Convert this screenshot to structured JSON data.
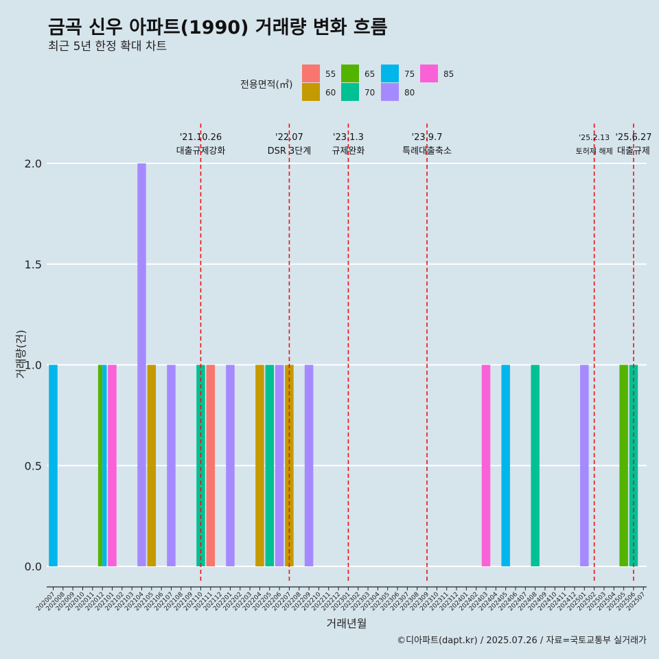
{
  "title": "금곡 신우 아파트(1990) 거래량 변화 흐름",
  "subtitle": "최근 5년 한정 확대 차트",
  "caption": "©디아파트(dapt.kr) / 2025.07.26 / 자료=국토교통부 실거래가",
  "chart_data": {
    "type": "bar",
    "xlabel": "거래년월",
    "ylabel": "거래량(건)",
    "ylim": [
      0,
      2
    ],
    "yticks": [
      "0.0",
      "0.5",
      "1.0",
      "1.5",
      "2.0"
    ],
    "grid": true,
    "legend": {
      "title": "전용면적(㎡)",
      "position": "top",
      "entries": [
        {
          "label": "55",
          "color": "#F8766D"
        },
        {
          "label": "60",
          "color": "#C49A00"
        },
        {
          "label": "65",
          "color": "#53B400"
        },
        {
          "label": "70",
          "color": "#00C094"
        },
        {
          "label": "75",
          "color": "#00B6EB"
        },
        {
          "label": "80",
          "color": "#A58AFF"
        },
        {
          "label": "85",
          "color": "#FB61D7"
        }
      ]
    },
    "categories": [
      "202007",
      "202008",
      "202009",
      "202010",
      "202011",
      "202012",
      "202101",
      "202102",
      "202103",
      "202104",
      "202105",
      "202106",
      "202107",
      "202108",
      "202109",
      "202110",
      "202111",
      "202112",
      "202201",
      "202202",
      "202203",
      "202204",
      "202205",
      "202206",
      "202207",
      "202208",
      "202209",
      "202210",
      "202211",
      "202212",
      "202301",
      "202302",
      "202303",
      "202304",
      "202305",
      "202306",
      "202307",
      "202308",
      "202309",
      "202310",
      "202311",
      "202312",
      "202401",
      "202402",
      "202403",
      "202404",
      "202405",
      "202406",
      "202407",
      "202408",
      "202409",
      "202410",
      "202411",
      "202412",
      "202501",
      "202502",
      "202503",
      "202504",
      "202505",
      "202506",
      "202507"
    ],
    "bars": [
      {
        "month": "202007",
        "area": "75",
        "value": 1
      },
      {
        "month": "202012",
        "area": "65",
        "value": 1
      },
      {
        "month": "202012",
        "area": "75",
        "value": 1
      },
      {
        "month": "202101",
        "area": "85",
        "value": 1
      },
      {
        "month": "202104",
        "area": "80",
        "value": 2
      },
      {
        "month": "202105",
        "area": "60",
        "value": 1
      },
      {
        "month": "202107",
        "area": "80",
        "value": 1
      },
      {
        "month": "202110",
        "area": "70",
        "value": 1
      },
      {
        "month": "202111",
        "area": "55",
        "value": 1
      },
      {
        "month": "202201",
        "area": "80",
        "value": 1
      },
      {
        "month": "202204",
        "area": "60",
        "value": 1
      },
      {
        "month": "202205",
        "area": "70",
        "value": 1
      },
      {
        "month": "202206",
        "area": "80",
        "value": 1
      },
      {
        "month": "202207",
        "area": "60",
        "value": 1
      },
      {
        "month": "202209",
        "area": "80",
        "value": 1
      },
      {
        "month": "202403",
        "area": "85",
        "value": 1
      },
      {
        "month": "202405",
        "area": "75",
        "value": 1
      },
      {
        "month": "202408",
        "area": "70",
        "value": 1
      },
      {
        "month": "202501",
        "area": "80",
        "value": 1
      },
      {
        "month": "202505",
        "area": "65",
        "value": 1
      },
      {
        "month": "202506",
        "area": "70",
        "value": 1
      }
    ],
    "annotations": [
      {
        "date": "'21.10.26",
        "label": "대출규제강화",
        "position_month": "202110"
      },
      {
        "date": "'22.07",
        "label": "DSR 3단계",
        "position_month": "202207"
      },
      {
        "date": "'23.1.3",
        "label": "규제완화",
        "position_month": "202301"
      },
      {
        "date": "'23.9.7",
        "label": "특례대출축소",
        "position_month": "202309"
      },
      {
        "date": "'25.2.13",
        "label": "토허제 해제",
        "position_month": "202502"
      },
      {
        "date": "'25.6.27",
        "label": "대출규제",
        "position_month": "202506"
      }
    ]
  }
}
